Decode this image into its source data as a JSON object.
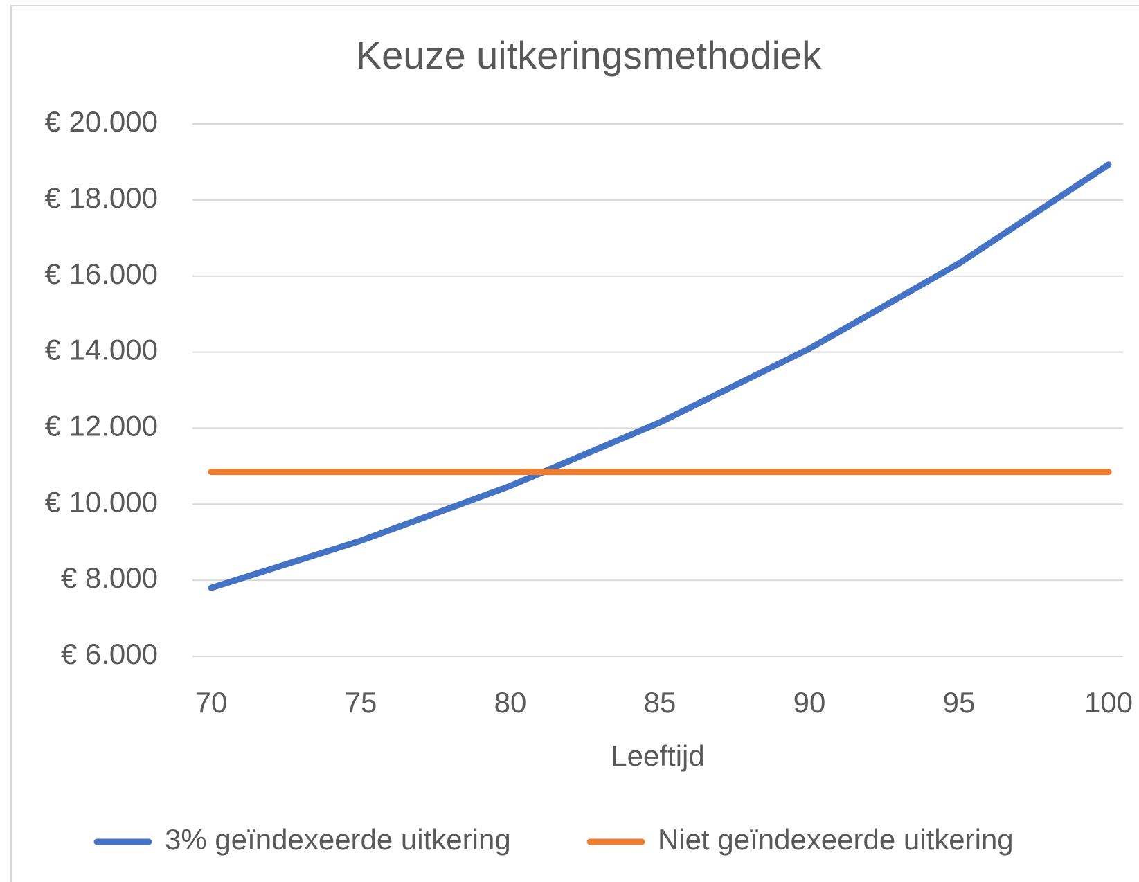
{
  "chart_data": {
    "type": "line",
    "title": "Keuze uitkeringsmethodiek",
    "x_label": "Leeftijd",
    "x": [
      70,
      75,
      80,
      85,
      90,
      95,
      100
    ],
    "series": [
      {
        "name": "3% geïndexeerde uitkering",
        "color": "#4472c4",
        "values": [
          7800,
          9040,
          10480,
          12150,
          14090,
          16330,
          18930
        ]
      },
      {
        "name": "Niet geïndexeerde uitkering",
        "color": "#ed7d31",
        "values": [
          10850,
          10850,
          10850,
          10850,
          10850,
          10850,
          10850
        ]
      }
    ],
    "xlim": [
      70,
      100
    ],
    "xticks": [
      70,
      75,
      80,
      85,
      90,
      95,
      100
    ],
    "ylim": [
      6000,
      20000
    ],
    "yticks": [
      {
        "value": 6000,
        "label": "€ 6.000"
      },
      {
        "value": 8000,
        "label": "€ 8.000"
      },
      {
        "value": 10000,
        "label": "€ 10.000"
      },
      {
        "value": 12000,
        "label": "€ 12.000"
      },
      {
        "value": 14000,
        "label": "€ 14.000"
      },
      {
        "value": 16000,
        "label": "€ 16.000"
      },
      {
        "value": 18000,
        "label": "€ 18.000"
      },
      {
        "value": 20000,
        "label": "€ 20.000"
      }
    ],
    "grid": true,
    "legend": "bottom"
  }
}
